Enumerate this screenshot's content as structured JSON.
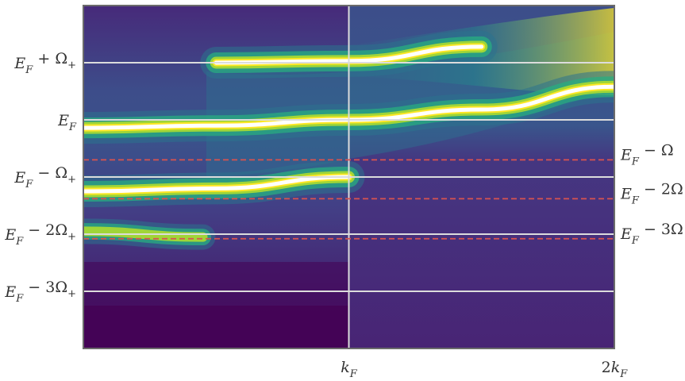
{
  "chart_data": {
    "type": "heatmap",
    "title": "",
    "xlabel": "",
    "ylabel": "",
    "colormap": "viridis",
    "x_ticks": [
      {
        "id": "kF",
        "pre": "",
        "main": "k",
        "sub": "F",
        "post": "",
        "value": 1
      },
      {
        "id": "2kF",
        "pre": "2",
        "main": "k",
        "sub": "F",
        "post": "",
        "value": 2
      }
    ],
    "xlim": [
      0,
      2
    ],
    "ylim": [
      -4,
      2
    ],
    "left_ticks": [
      {
        "id": "ef-plus-omega-plus",
        "main": "E",
        "sub": "F",
        "post": " + Ω",
        "sub2": "+",
        "value": 1
      },
      {
        "id": "ef",
        "main": "E",
        "sub": "F",
        "post": "",
        "sub2": "",
        "value": 0
      },
      {
        "id": "ef-minus-omega-plus",
        "main": "E",
        "sub": "F",
        "post": " − Ω",
        "sub2": "+",
        "value": -1
      },
      {
        "id": "ef-minus-2omega-plus",
        "main": "E",
        "sub": "F",
        "post": " − 2Ω",
        "sub2": "+",
        "value": -2
      },
      {
        "id": "ef-minus-3omega-plus",
        "main": "E",
        "sub": "F",
        "post": " − 3Ω",
        "sub2": "+",
        "value": -3
      }
    ],
    "right_ticks": [
      {
        "id": "ef-minus-omega",
        "main": "E",
        "sub": "F",
        "post": " − Ω",
        "value": -0.7
      },
      {
        "id": "ef-minus-2omega",
        "main": "E",
        "sub": "F",
        "post": " − 2Ω",
        "value": -1.38
      },
      {
        "id": "ef-minus-3omega",
        "main": "E",
        "sub": "F",
        "post": " − 3Ω",
        "value": -2.08
      }
    ],
    "reference_lines": {
      "solid_horizontal": [
        1,
        0,
        -1,
        -2,
        -3
      ],
      "solid_vertical": [
        1
      ],
      "dashed_horizontal": [
        -0.7,
        -1.38,
        -2.08
      ],
      "solid_color": "#dcdcdc",
      "dashed_color": "#d9534f"
    },
    "bands": [
      {
        "id": "main-band",
        "points": [
          [
            0,
            -0.14
          ],
          [
            0.5,
            -0.1
          ],
          [
            1,
            0
          ],
          [
            1.5,
            0.18
          ],
          [
            2,
            0.58
          ]
        ]
      },
      {
        "id": "upper-replica",
        "points": [
          [
            0.5,
            1.0
          ],
          [
            1.0,
            1.03
          ],
          [
            1.5,
            1.28
          ]
        ]
      },
      {
        "id": "replica-1",
        "points": [
          [
            0,
            -1.25
          ],
          [
            0.5,
            -1.2
          ],
          [
            1,
            -1.0
          ]
        ]
      },
      {
        "id": "replica-2",
        "points": [
          [
            0,
            -1.95
          ],
          [
            0.45,
            -2.05
          ]
        ]
      }
    ],
    "colors": {
      "deep": "#440154",
      "dark": "#46287a",
      "mid": "#3b518b",
      "teal": "#2c728e",
      "green": "#28ae80",
      "lime": "#addc30",
      "yellow": "#fde725",
      "peak": "#ffffff",
      "frame": "#6b6b6b"
    }
  }
}
